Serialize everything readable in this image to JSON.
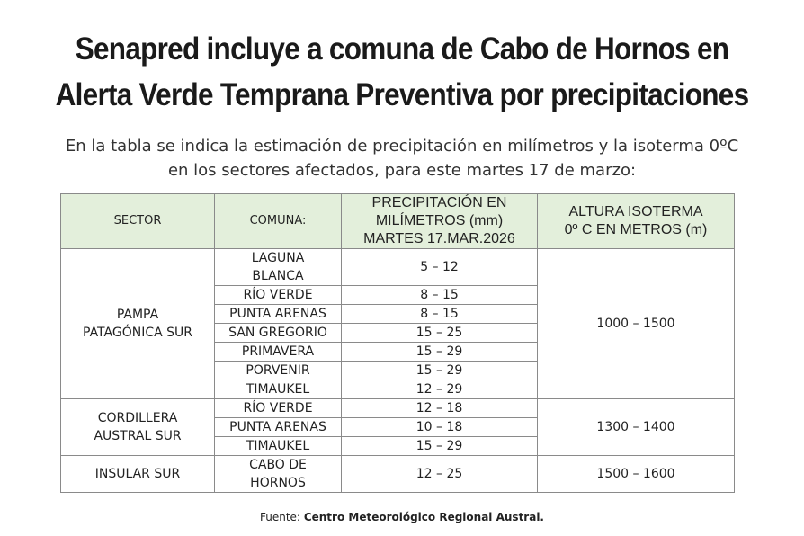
{
  "headline": {
    "line1": "Senapred incluye a comuna de Cabo de Hornos en",
    "line2": "Alerta Verde Temprana Preventiva por precipitaciones"
  },
  "intro": {
    "line1": "En la tabla se indica la estimación de precipitación en milímetros y la isoterma 0ºC",
    "line2": "en los sectores afectados, para este martes 17 de marzo:"
  },
  "table": {
    "headers": {
      "sector": "SECTOR",
      "comuna": "COMUNA:",
      "precip": [
        "PRECIPITACIÓN EN",
        "MILÍMETROS (mm)",
        "MARTES 17.MAR.2026"
      ],
      "isoterma": [
        "ALTURA ISOTERMA",
        "0º C EN METROS (m)"
      ]
    },
    "groups": [
      {
        "sector": [
          "PAMPA",
          "PATAGÓNICA SUR"
        ],
        "isoterma": "1000 – 1500",
        "rows": [
          {
            "comuna": [
              "LAGUNA",
              "BLANCA"
            ],
            "precip": "5 – 12"
          },
          {
            "comuna": [
              "RÍO VERDE"
            ],
            "precip": "8 – 15"
          },
          {
            "comuna": [
              "PUNTA ARENAS"
            ],
            "precip": "8 – 15"
          },
          {
            "comuna": [
              "SAN GREGORIO"
            ],
            "precip": "15 – 25"
          },
          {
            "comuna": [
              "PRIMAVERA"
            ],
            "precip": "15 – 29"
          },
          {
            "comuna": [
              "PORVENIR"
            ],
            "precip": "15 – 29"
          },
          {
            "comuna": [
              "TIMAUKEL"
            ],
            "precip": "12 – 29"
          }
        ]
      },
      {
        "sector": [
          "CORDILLERA",
          "AUSTRAL SUR"
        ],
        "isoterma": "1300 – 1400",
        "rows": [
          {
            "comuna": [
              "RÍO VERDE"
            ],
            "precip": "12 – 18"
          },
          {
            "comuna": [
              "PUNTA ARENAS"
            ],
            "precip": "10 – 18"
          },
          {
            "comuna": [
              "TIMAUKEL"
            ],
            "precip": "15 – 29"
          }
        ]
      },
      {
        "sector": [
          "INSULAR SUR"
        ],
        "isoterma": "1500 – 1600",
        "rows": [
          {
            "comuna": [
              "CABO DE",
              "HORNOS"
            ],
            "precip": "12 – 25"
          }
        ]
      }
    ]
  },
  "source": {
    "label": "Fuente:",
    "name": "Centro Meteorológico Regional Austral."
  },
  "colors": {
    "header_bg": "#e3efdb",
    "border": "#8a8a8a",
    "text": "#1a1a1a"
  }
}
